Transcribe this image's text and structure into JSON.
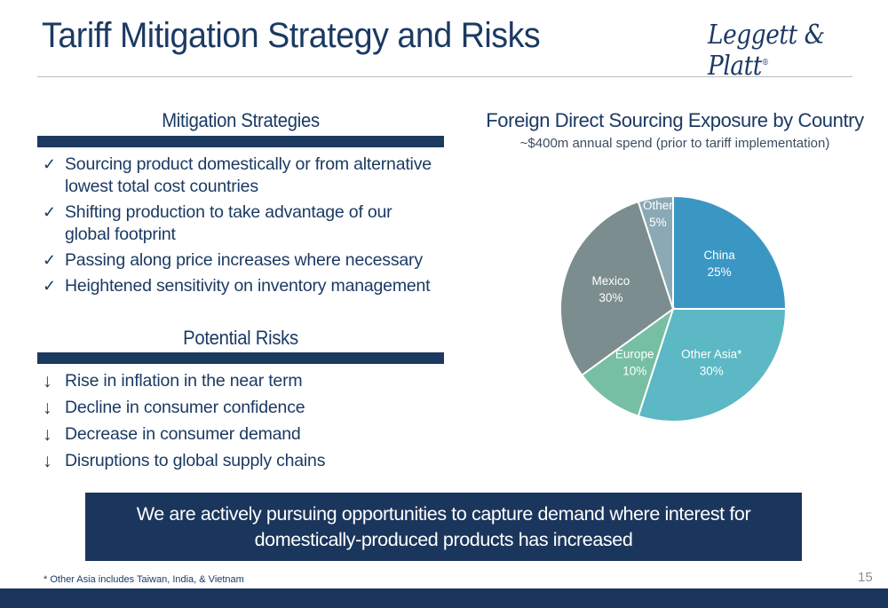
{
  "slide": {
    "title": "Tariff Mitigation Strategy and Risks",
    "logo_text": "Leggett & Platt",
    "logo_mark": "®",
    "page_number": "15",
    "footnote": "* Other Asia includes Taiwan, India, & Vietnam"
  },
  "mitigation": {
    "heading": "Mitigation Strategies",
    "mark": "✓",
    "items": [
      "Sourcing product domestically or from alternative lowest total cost countries",
      "Shifting production to take advantage of our global footprint",
      "Passing along price increases where necessary",
      "Heightened sensitivity on inventory management"
    ]
  },
  "risks": {
    "heading": "Potential Risks",
    "mark": "↓",
    "items": [
      "Rise in inflation in the near term",
      "Decline in consumer confidence",
      "Decrease in consumer demand",
      "Disruptions to global supply chains"
    ]
  },
  "callout": {
    "text": "We are actively pursuing opportunities to capture demand where interest for domestically-produced products has increased"
  },
  "chart_data": {
    "type": "pie",
    "title": "Foreign Direct Sourcing Exposure by Country",
    "subtitle": "~$400m annual spend (prior to tariff implementation)",
    "slices": [
      {
        "label": "China",
        "value": 25,
        "display": "25%",
        "color": "#3a97c4"
      },
      {
        "label": "Other Asia*",
        "value": 30,
        "display": "30%",
        "color": "#5bb8c4"
      },
      {
        "label": "Europe",
        "value": 10,
        "display": "10%",
        "color": "#77bfa3"
      },
      {
        "label": "Mexico",
        "value": 30,
        "display": "30%",
        "color": "#7b8d8f"
      },
      {
        "label": "Other",
        "value": 5,
        "display": "5%",
        "color": "#8aa9b5"
      }
    ]
  },
  "colors": {
    "navy": "#1b365d",
    "text": "#1b3a63"
  }
}
